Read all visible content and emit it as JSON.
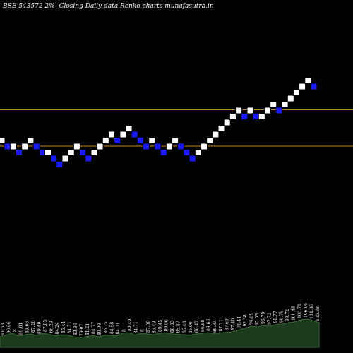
{
  "title": "BSE 543572  2%-  Closing Daily data  Renko  charts munafasutra.in",
  "chart_data": {
    "type": "renko",
    "title": "BSE 543572  2%-  Closing Daily data  Renko  charts munafasutra.in",
    "box_percent": 2,
    "colors": {
      "background": "#000000",
      "up_brick": "#ffffff",
      "down_brick": "#1a1aff",
      "brick_border": "#000000",
      "reference_line": "#c8861e",
      "volume_area": "#1c3a1c",
      "volume_edge": "#3a6a3a",
      "text": "#ffffff"
    },
    "reference_lines": [
      98.5,
      91.2
    ],
    "bricks": [
      {
        "dir": "up",
        "level": 1
      },
      {
        "dir": "down",
        "level": 0
      },
      {
        "dir": "up",
        "level": 0
      },
      {
        "dir": "down",
        "level": -1
      },
      {
        "dir": "up",
        "level": 0
      },
      {
        "dir": "up",
        "level": 1
      },
      {
        "dir": "down",
        "level": 0
      },
      {
        "dir": "down",
        "level": -1
      },
      {
        "dir": "up",
        "level": -1
      },
      {
        "dir": "down",
        "level": -2
      },
      {
        "dir": "down",
        "level": -3
      },
      {
        "dir": "up",
        "level": -2
      },
      {
        "dir": "up",
        "level": -1
      },
      {
        "dir": "up",
        "level": 0
      },
      {
        "dir": "down",
        "level": -1
      },
      {
        "dir": "down",
        "level": -2
      },
      {
        "dir": "up",
        "level": -1
      },
      {
        "dir": "up",
        "level": 0
      },
      {
        "dir": "up",
        "level": 1
      },
      {
        "dir": "up",
        "level": 2
      },
      {
        "dir": "down",
        "level": 1
      },
      {
        "dir": "up",
        "level": 2
      },
      {
        "dir": "up",
        "level": 3
      },
      {
        "dir": "down",
        "level": 2
      },
      {
        "dir": "down",
        "level": 1
      },
      {
        "dir": "down",
        "level": 0
      },
      {
        "dir": "up",
        "level": 1
      },
      {
        "dir": "down",
        "level": 0
      },
      {
        "dir": "down",
        "level": -1
      },
      {
        "dir": "up",
        "level": 0
      },
      {
        "dir": "up",
        "level": 1
      },
      {
        "dir": "down",
        "level": 0
      },
      {
        "dir": "down",
        "level": -1
      },
      {
        "dir": "down",
        "level": -2
      },
      {
        "dir": "up",
        "level": -1
      },
      {
        "dir": "up",
        "level": 0
      },
      {
        "dir": "up",
        "level": 1
      },
      {
        "dir": "up",
        "level": 2
      },
      {
        "dir": "up",
        "level": 3
      },
      {
        "dir": "up",
        "level": 4
      },
      {
        "dir": "up",
        "level": 5
      },
      {
        "dir": "up",
        "level": 6
      },
      {
        "dir": "down",
        "level": 5
      },
      {
        "dir": "up",
        "level": 6
      },
      {
        "dir": "down",
        "level": 5
      },
      {
        "dir": "up",
        "level": 5
      },
      {
        "dir": "up",
        "level": 6
      },
      {
        "dir": "up",
        "level": 7
      },
      {
        "dir": "down",
        "level": 6
      },
      {
        "dir": "up",
        "level": 7
      },
      {
        "dir": "up",
        "level": 8
      },
      {
        "dir": "up",
        "level": 9
      },
      {
        "dir": "up",
        "level": 10
      },
      {
        "dir": "up",
        "level": 11
      },
      {
        "dir": "down",
        "level": 10
      }
    ],
    "volume_labels": [
      "91.53",
      "90.66",
      "8",
      "89.81",
      "89.66",
      "87.20",
      "89.49",
      "87.05",
      "86.29",
      "84.24",
      "85.44",
      "84.71",
      "83.36",
      "79.07",
      "81.21",
      "84.77",
      "80.99",
      "86.75",
      "84.58",
      "84.71",
      "8",
      "89.49",
      "84.71",
      "8",
      "87.00",
      "85.49",
      "89.45",
      "89.06",
      "88.83",
      "85.87",
      "85.48",
      "85.00",
      "86.47",
      "86.88",
      "89.66",
      "86.33",
      "87.21",
      "87.69",
      "87.40",
      "91.41",
      "92.38",
      "94.59",
      "95.53",
      "96.79",
      "97.72",
      "98.77",
      "98.79",
      "99.72",
      "100.48",
      "103.78",
      "106.96",
      "104.86",
      "105.88"
    ],
    "volume_heights": [
      0.3,
      0.35,
      0.4,
      0.32,
      0.36,
      0.38,
      0.34,
      0.4,
      0.37,
      0.33,
      0.36,
      0.35,
      0.3,
      0.28,
      0.3,
      0.34,
      0.3,
      0.35,
      0.34,
      0.33,
      0.4,
      0.42,
      0.35,
      0.4,
      0.38,
      0.36,
      0.4,
      0.41,
      0.38,
      0.37,
      0.36,
      0.35,
      0.38,
      0.4,
      0.42,
      0.38,
      0.41,
      0.43,
      0.44,
      0.5,
      0.55,
      0.6,
      0.58,
      0.62,
      0.6,
      0.65,
      0.66,
      0.7,
      0.72,
      0.78,
      0.8,
      0.76,
      0.7
    ]
  }
}
